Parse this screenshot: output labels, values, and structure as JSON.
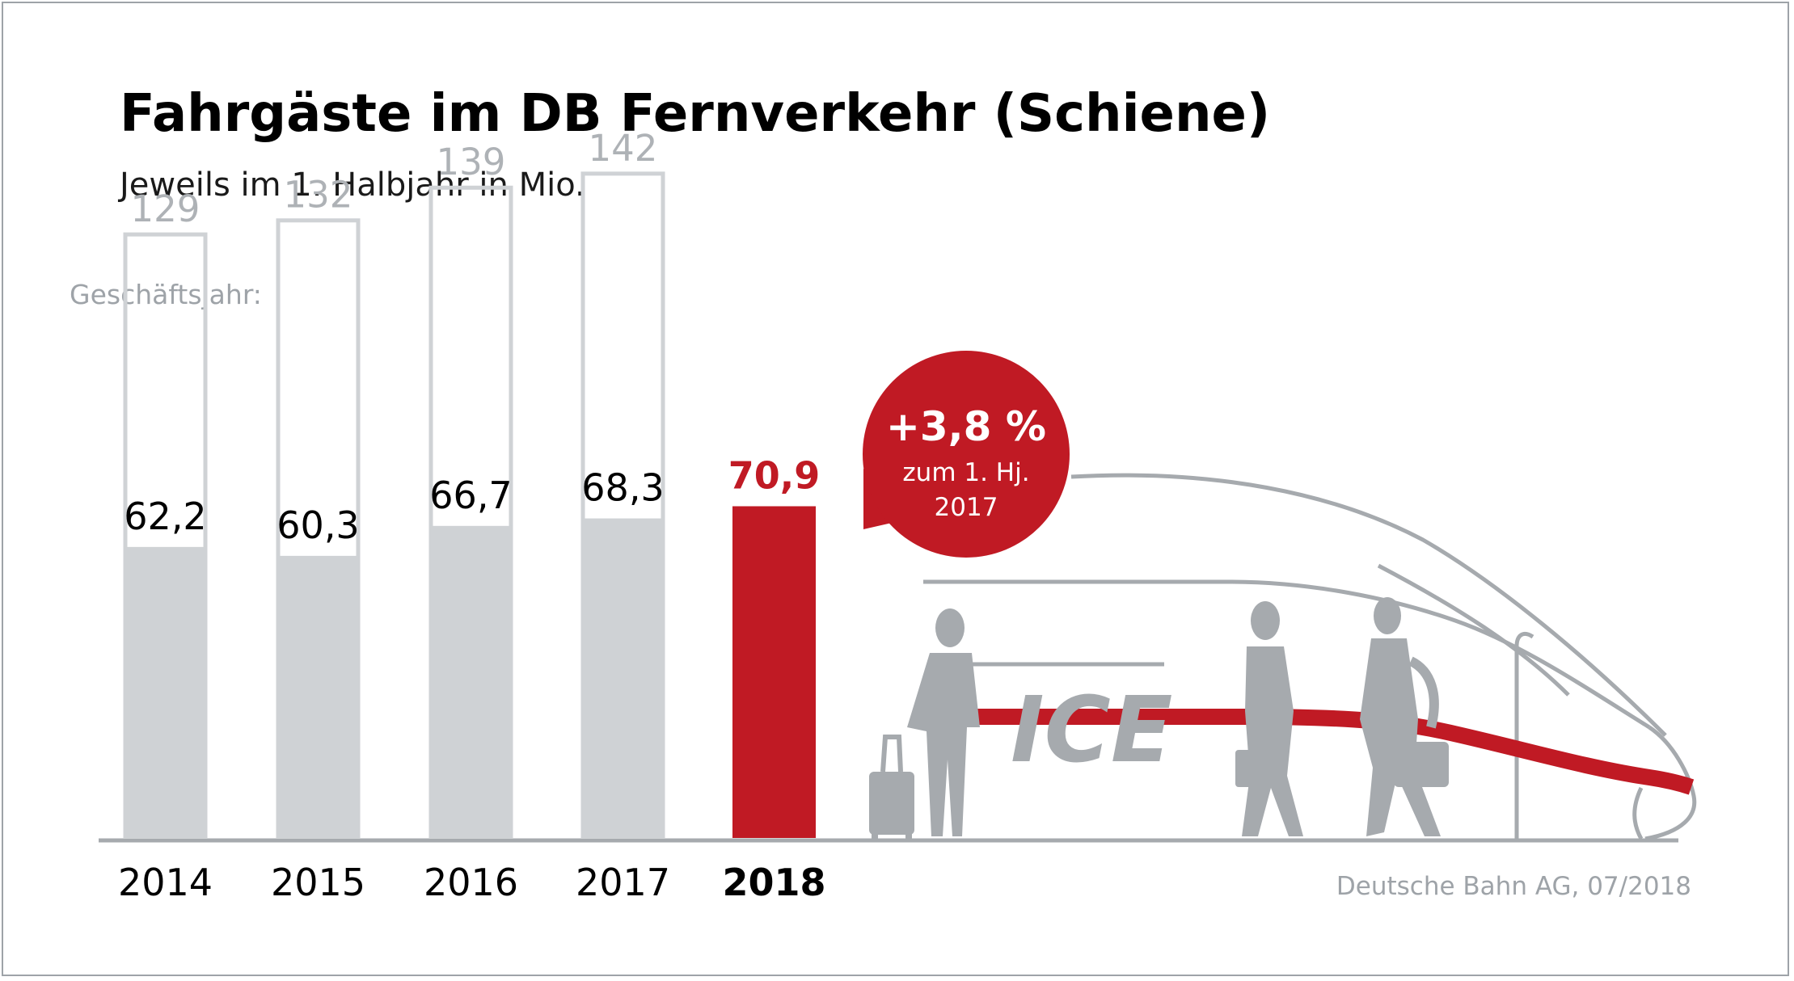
{
  "title": "Fahrgäste im DB Fernverkehr (Schiene)",
  "subtitle": "Jeweils im 1. Halbjahr in Mio.",
  "source": "Deutsche Bahn AG, 07/2018",
  "colors": {
    "bar": "#cfd2d5",
    "highlight": "#c01a24",
    "outline": "#cfd2d5",
    "axis": "#a6aaae",
    "muted_text": "#9ea3a8"
  },
  "chart_data": {
    "type": "bar",
    "categories": [
      "2014",
      "2015",
      "2016",
      "2017",
      "2018"
    ],
    "series": [
      {
        "values": [
          62.2,
          60.3,
          66.7,
          68.3,
          70.9
        ]
      },
      {
        "name": "Geschäftsjahr:",
        "values": [
          129,
          132,
          139,
          142,
          null
        ]
      }
    ],
    "value_labels": [
      "62,2",
      "60,3",
      "66,7",
      "68,3",
      "70,9"
    ],
    "annual_labels": [
      "129",
      "132",
      "139",
      "142",
      ""
    ],
    "annual_label_title": "Geschäftsjahr:",
    "highlight_category": "2018",
    "title": "Fahrgäste im DB Fernverkehr (Schiene)",
    "subtitle": "Jeweils im 1. Halbjahr in Mio.",
    "xlabel": "",
    "ylabel": "",
    "ylim": [
      0,
      150
    ],
    "grid": false,
    "legend": "none"
  },
  "callout": {
    "value": "+3,8 %",
    "line1": "zum 1. Hj.",
    "line2": "2017"
  },
  "illustration": {
    "train_text": "ICE",
    "icons": [
      "ice-train-icon",
      "traveler-with-suitcase-icon",
      "walking-woman-icon",
      "walking-man-icon"
    ]
  }
}
